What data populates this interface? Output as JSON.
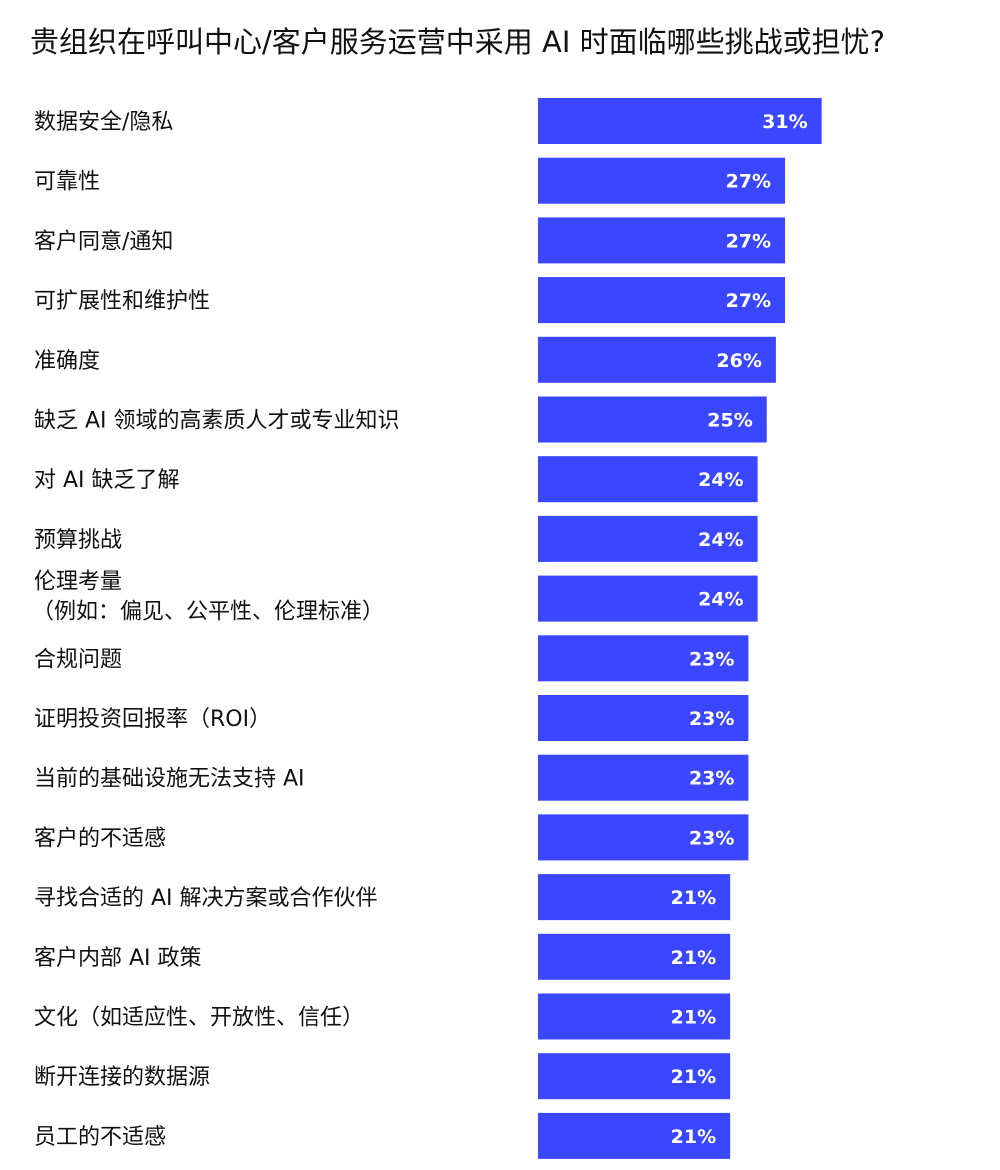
{
  "chart_data": {
    "type": "bar",
    "orientation": "horizontal",
    "title": "贵组织在呼叫中心/客户服务运营中采用 AI 时面临哪些挑战或担忧?",
    "bar_color": "#3a46ff",
    "value_label_color": "#ffffff",
    "value_suffix": "%",
    "categories": [
      "数据安全/隐私",
      "可靠性",
      "客户同意/通知",
      "可扩展性和维护性",
      "准确度",
      "缺乏 AI 领域的高素质人才或专业知识",
      "对 AI 缺乏了解",
      "预算挑战",
      [
        "伦理考量",
        "（例如：偏见、公平性、伦理标准）"
      ],
      "合规问题",
      "证明投资回报率（ROI）",
      "当前的基础设施无法支持 AI",
      "客户的不适感",
      "寻找合适的 AI 解决方案或合作伙伴",
      "客户内部 AI 政策",
      "文化（如适应性、开放性、信任）",
      "断开连接的数据源",
      "员工的不适感"
    ],
    "values": [
      31,
      27,
      27,
      27,
      26,
      25,
      24,
      24,
      24,
      23,
      23,
      23,
      23,
      21,
      21,
      21,
      21,
      21
    ],
    "xlim": [
      0,
      100
    ],
    "grid": false,
    "legend": "none"
  }
}
